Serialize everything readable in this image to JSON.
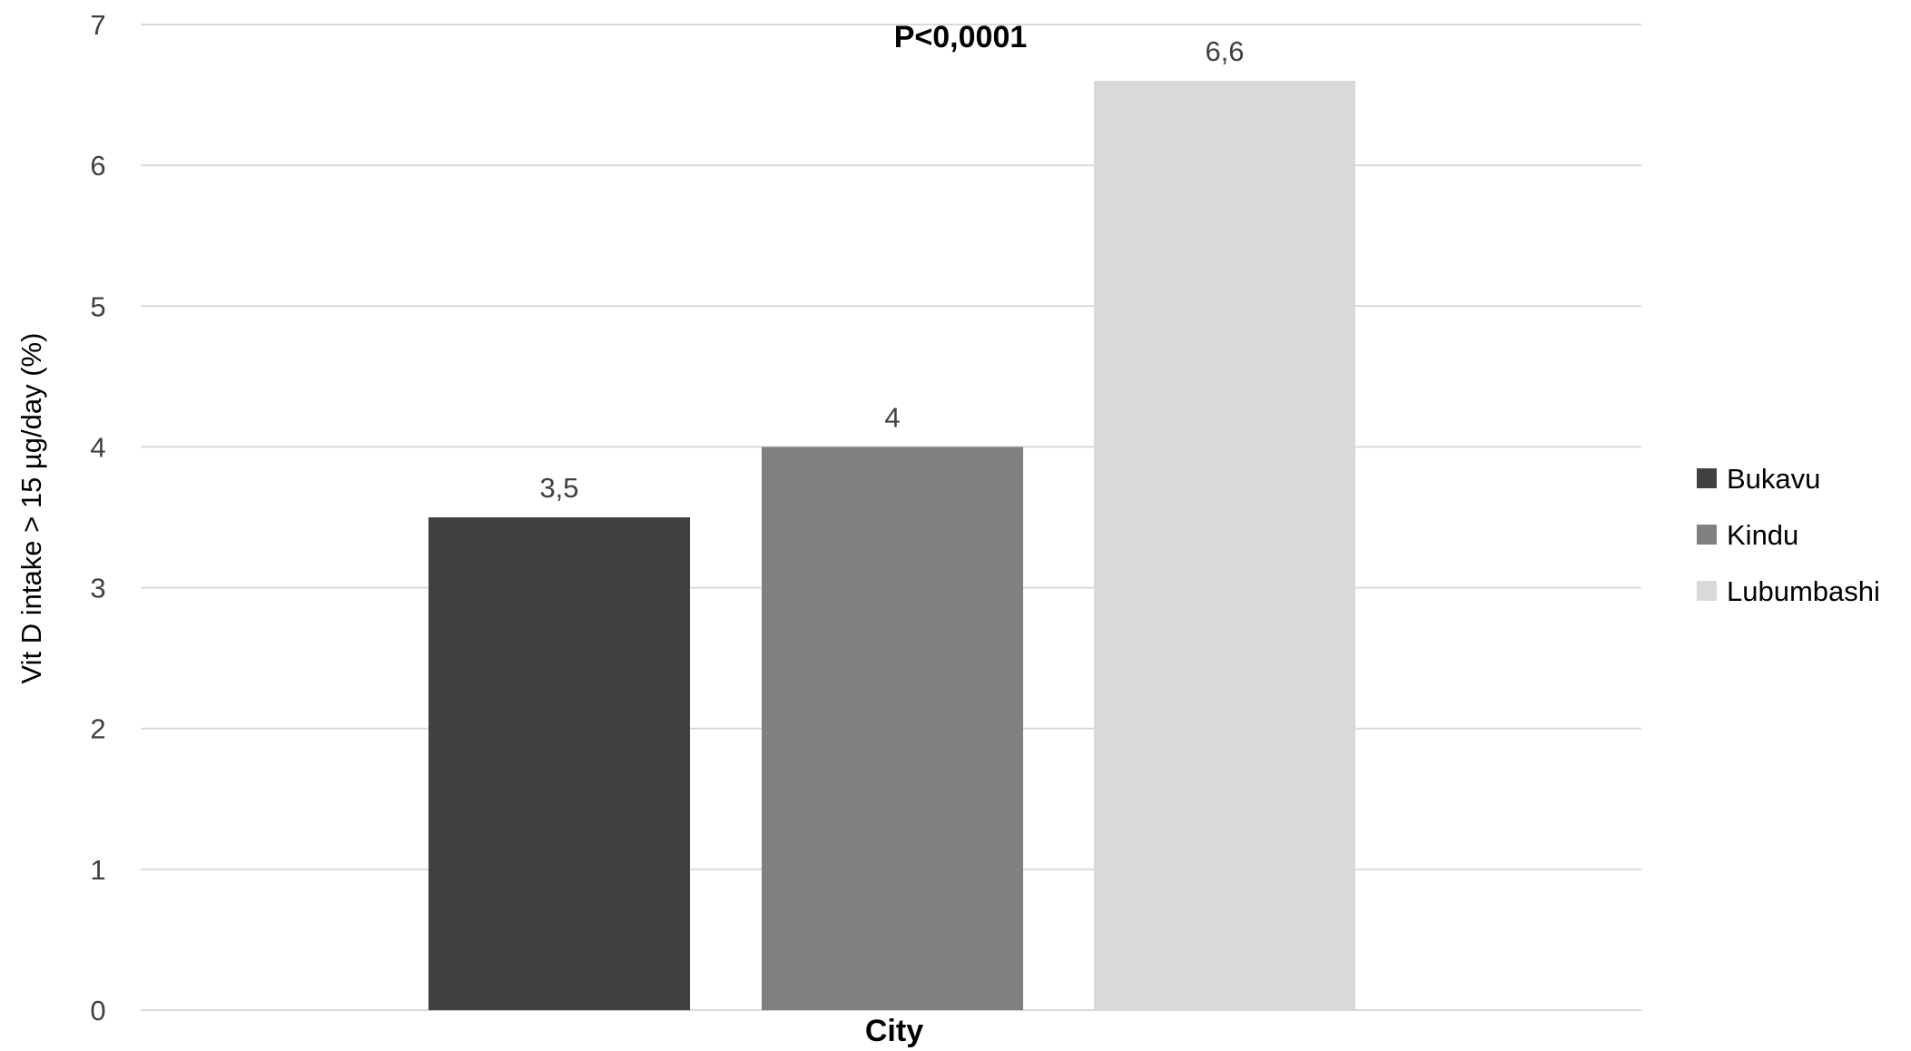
{
  "chart_data": {
    "type": "bar",
    "categories": [
      "Bukavu",
      "Kindu",
      "Lubumbashi"
    ],
    "values": [
      3.5,
      4,
      6.6
    ],
    "data_labels": [
      "3,5",
      "4",
      "6,6"
    ],
    "colors": [
      "#404040",
      "#808080",
      "#d9d9d9"
    ],
    "title": "",
    "xlabel": "City",
    "ylabel": "Vit D intake > 15 µg/day (%)",
    "ylim": [
      0,
      7
    ],
    "yticks": [
      0,
      1,
      2,
      3,
      4,
      5,
      6,
      7
    ],
    "ytick_labels": [
      "0",
      "1",
      "2",
      "3",
      "4",
      "5",
      "6",
      "7"
    ],
    "annotation": "P<0,0001",
    "legend": {
      "position": "right",
      "entries": [
        "Bukavu",
        "Kindu",
        "Lubumbashi"
      ]
    },
    "grid": true
  }
}
